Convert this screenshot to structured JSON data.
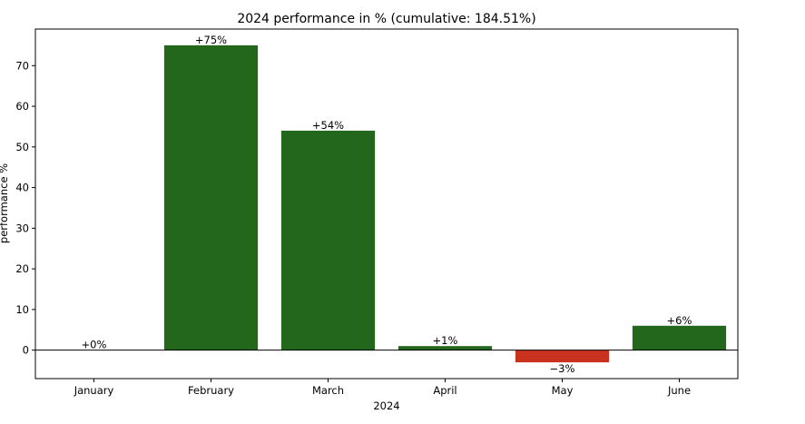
{
  "chart_data": {
    "type": "bar",
    "title": "2024 performance in % (cumulative: 184.51%)",
    "xlabel": "2024",
    "ylabel": "performance %",
    "categories": [
      "January",
      "February",
      "March",
      "April",
      "May",
      "June"
    ],
    "values": [
      0,
      75,
      54,
      1,
      -3,
      6
    ],
    "value_labels": [
      "+0%",
      "+75%",
      "+54%",
      "+1%",
      "−3%",
      "+6%"
    ],
    "ylim": [
      -7,
      79
    ],
    "yticks": [
      0,
      10,
      20,
      30,
      40,
      50,
      60,
      70
    ],
    "grid": false,
    "zero_line": true,
    "colors": {
      "positive": "#22671c",
      "negative": "#c9321f",
      "axis": "#000000"
    }
  }
}
